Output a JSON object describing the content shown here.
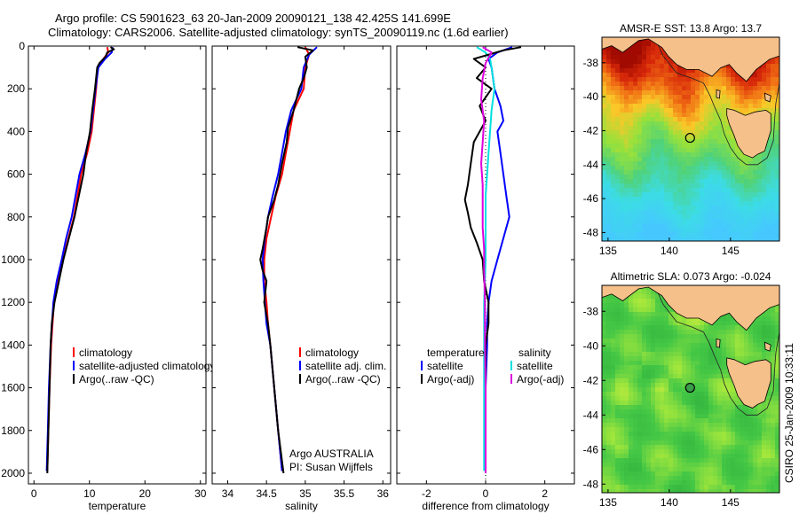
{
  "header": {
    "line1": "Argo profile: CS 5901623_63 20-Jan-2009 20090121_138 42.425S 141.699E",
    "line2": "Climatology: CARS2006. Satellite-adjusted climatology: synTS_20090119.nc (1.6d earlier)"
  },
  "credit": "CSIRO 25-Jan-2009 10:33:11",
  "chart_data": [
    {
      "type": "line",
      "xlabel": "temperature",
      "xlim": [
        -1,
        31
      ],
      "ylim": [
        2050,
        0
      ],
      "xticks": [
        0,
        10,
        20,
        30
      ],
      "yticks": [
        0,
        200,
        400,
        600,
        800,
        1000,
        1200,
        1400,
        1600,
        1800,
        2000
      ],
      "legend": [
        "climatology",
        "satellite-adjusted climatology",
        "Argo(..raw -QC)"
      ],
      "series": [
        {
          "color": "#ff0000",
          "points": [
            [
              13.2,
              5
            ],
            [
              13.4,
              30
            ],
            [
              12.5,
              60
            ],
            [
              11.5,
              100
            ],
            [
              11.2,
              200
            ],
            [
              10.4,
              400
            ],
            [
              9.6,
              500
            ],
            [
              8.5,
              600
            ],
            [
              7.2,
              800
            ],
            [
              6.2,
              900
            ],
            [
              5.2,
              1000
            ],
            [
              4.3,
              1100
            ],
            [
              3.6,
              1200
            ],
            [
              3.1,
              1400
            ],
            [
              2.8,
              1600
            ],
            [
              2.6,
              1800
            ],
            [
              2.4,
              1990
            ]
          ]
        },
        {
          "color": "#0000ff",
          "points": [
            [
              14.2,
              5
            ],
            [
              14.0,
              30
            ],
            [
              12.8,
              60
            ],
            [
              11.6,
              100
            ],
            [
              11.1,
              200
            ],
            [
              10.2,
              400
            ],
            [
              9.3,
              500
            ],
            [
              8.2,
              600
            ],
            [
              6.8,
              800
            ],
            [
              5.8,
              900
            ],
            [
              5.0,
              1000
            ],
            [
              4.1,
              1100
            ],
            [
              3.5,
              1200
            ],
            [
              3.0,
              1400
            ],
            [
              2.7,
              1600
            ],
            [
              2.5,
              1800
            ],
            [
              2.3,
              1990
            ]
          ]
        },
        {
          "color": "#000000",
          "points": [
            [
              13.8,
              5
            ],
            [
              14.4,
              15
            ],
            [
              13.2,
              30
            ],
            [
              12.9,
              50
            ],
            [
              11.8,
              80
            ],
            [
              11.4,
              100
            ],
            [
              11.0,
              200
            ],
            [
              10.5,
              300
            ],
            [
              10.1,
              400
            ],
            [
              9.4,
              500
            ],
            [
              8.9,
              600
            ],
            [
              8.1,
              700
            ],
            [
              7.3,
              800
            ],
            [
              6.3,
              900
            ],
            [
              5.3,
              1000
            ],
            [
              4.5,
              1100
            ],
            [
              3.7,
              1200
            ],
            [
              3.2,
              1300
            ],
            [
              3.0,
              1400
            ],
            [
              2.8,
              1600
            ],
            [
              2.6,
              1800
            ],
            [
              2.4,
              2000
            ]
          ]
        }
      ]
    },
    {
      "type": "line",
      "xlabel": "salinity",
      "xlim": [
        33.8,
        36.1
      ],
      "ylim": [
        2050,
        0
      ],
      "xticks": [
        34,
        34.5,
        35,
        35.5,
        36
      ],
      "xticklabels": [
        "34",
        "34.5",
        "35",
        "35.5",
        "36"
      ],
      "legend": [
        "climatology",
        "satellite adj. clim.",
        "Argo(..raw -QC)"
      ],
      "annotation": [
        "Argo AUSTRALIA",
        "PI: Susan Wijffels"
      ],
      "series": [
        {
          "color": "#ff0000",
          "points": [
            [
              35.0,
              5
            ],
            [
              35.05,
              40
            ],
            [
              35.0,
              100
            ],
            [
              34.98,
              200
            ],
            [
              34.85,
              300
            ],
            [
              34.8,
              400
            ],
            [
              34.75,
              500
            ],
            [
              34.7,
              600
            ],
            [
              34.62,
              700
            ],
            [
              34.56,
              800
            ],
            [
              34.5,
              900
            ],
            [
              34.47,
              1000
            ],
            [
              34.47,
              1100
            ],
            [
              34.5,
              1200
            ],
            [
              34.52,
              1300
            ],
            [
              34.55,
              1400
            ],
            [
              34.6,
              1600
            ],
            [
              34.65,
              1800
            ],
            [
              34.7,
              1990
            ]
          ]
        },
        {
          "color": "#0000ff",
          "points": [
            [
              35.15,
              5
            ],
            [
              35.05,
              40
            ],
            [
              34.98,
              100
            ],
            [
              34.95,
              200
            ],
            [
              34.82,
              300
            ],
            [
              34.75,
              400
            ],
            [
              34.7,
              500
            ],
            [
              34.65,
              600
            ],
            [
              34.58,
              700
            ],
            [
              34.52,
              800
            ],
            [
              34.48,
              900
            ],
            [
              34.45,
              1000
            ],
            [
              34.46,
              1100
            ],
            [
              34.48,
              1200
            ],
            [
              34.5,
              1300
            ],
            [
              34.55,
              1400
            ],
            [
              34.6,
              1600
            ],
            [
              34.65,
              1800
            ],
            [
              34.7,
              1990
            ]
          ]
        },
        {
          "color": "#000000",
          "points": [
            [
              34.9,
              5
            ],
            [
              35.1,
              20
            ],
            [
              35.0,
              50
            ],
            [
              35.02,
              100
            ],
            [
              34.98,
              150
            ],
            [
              34.92,
              200
            ],
            [
              34.85,
              300
            ],
            [
              34.78,
              380
            ],
            [
              34.76,
              450
            ],
            [
              34.7,
              550
            ],
            [
              34.65,
              650
            ],
            [
              34.6,
              720
            ],
            [
              34.52,
              800
            ],
            [
              34.5,
              850
            ],
            [
              34.45,
              950
            ],
            [
              34.42,
              1000
            ],
            [
              34.45,
              1050
            ],
            [
              34.5,
              1100
            ],
            [
              34.47,
              1200
            ],
            [
              34.52,
              1300
            ],
            [
              34.55,
              1400
            ],
            [
              34.6,
              1600
            ],
            [
              34.65,
              1800
            ],
            [
              34.72,
              2000
            ]
          ]
        }
      ]
    },
    {
      "type": "line",
      "xlabel": "difference from climatology",
      "xlim": [
        -3,
        3
      ],
      "ylim": [
        2050,
        0
      ],
      "xticks": [
        -2,
        0,
        2
      ],
      "legend_left": {
        "title": "temperature",
        "items": [
          "satellite",
          "Argo(-adj)"
        ]
      },
      "legend_right": {
        "title": "salinity",
        "items": [
          "satellite",
          "Argo(-adj)"
        ]
      },
      "series": [
        {
          "color": "#0000ff",
          "points": [
            [
              0.9,
              5
            ],
            [
              0.4,
              30
            ],
            [
              0.1,
              60
            ],
            [
              0.2,
              100
            ],
            [
              0.3,
              200
            ],
            [
              0.5,
              280
            ],
            [
              0.6,
              350
            ],
            [
              0.4,
              400
            ],
            [
              0.5,
              500
            ],
            [
              0.6,
              600
            ],
            [
              0.7,
              700
            ],
            [
              0.8,
              800
            ],
            [
              0.6,
              900
            ],
            [
              0.4,
              1000
            ],
            [
              0.2,
              1100
            ],
            [
              0.1,
              1200
            ],
            [
              0.05,
              1300
            ],
            [
              0.05,
              1400
            ],
            [
              0.0,
              1600
            ],
            [
              0.0,
              1800
            ],
            [
              0.0,
              1990
            ]
          ]
        },
        {
          "color": "#00e0e0",
          "points": [
            [
              -0.3,
              5
            ],
            [
              0.0,
              30
            ],
            [
              0.15,
              60
            ],
            [
              0.2,
              100
            ],
            [
              0.3,
              200
            ],
            [
              0.2,
              300
            ],
            [
              0.15,
              400
            ],
            [
              0.1,
              500
            ],
            [
              0.05,
              600
            ],
            [
              0.0,
              700
            ],
            [
              0.0,
              900
            ],
            [
              0.0,
              1000
            ],
            [
              -0.05,
              1200
            ],
            [
              -0.05,
              1400
            ],
            [
              -0.05,
              1600
            ],
            [
              -0.05,
              1800
            ],
            [
              -0.05,
              1990
            ]
          ]
        },
        {
          "color": "#000000",
          "points": [
            [
              1.2,
              5
            ],
            [
              0.6,
              20
            ],
            [
              -0.4,
              60
            ],
            [
              0.0,
              100
            ],
            [
              -0.3,
              150
            ],
            [
              0.2,
              200
            ],
            [
              -0.2,
              280
            ],
            [
              0.0,
              350
            ],
            [
              -0.4,
              450
            ],
            [
              -0.5,
              550
            ],
            [
              -0.6,
              650
            ],
            [
              -0.7,
              720
            ],
            [
              -0.6,
              780
            ],
            [
              -0.5,
              850
            ],
            [
              -0.3,
              920
            ],
            [
              -0.1,
              1000
            ],
            [
              -0.05,
              1100
            ],
            [
              0.1,
              1200
            ],
            [
              0.1,
              1300
            ],
            [
              0.0,
              1400
            ],
            [
              0.0,
              1600
            ],
            [
              0.0,
              1800
            ],
            [
              0.0,
              2000
            ]
          ]
        },
        {
          "color": "#dd00dd",
          "points": [
            [
              -0.1,
              5
            ],
            [
              0.2,
              30
            ],
            [
              0.0,
              80
            ],
            [
              -0.1,
              150
            ],
            [
              -0.15,
              250
            ],
            [
              -0.05,
              350
            ],
            [
              -0.1,
              450
            ],
            [
              -0.15,
              550
            ],
            [
              -0.1,
              650
            ],
            [
              -0.1,
              750
            ],
            [
              -0.1,
              850
            ],
            [
              -0.05,
              950
            ],
            [
              -0.05,
              1050
            ],
            [
              -0.02,
              1200
            ],
            [
              -0.02,
              1400
            ],
            [
              0.0,
              1600
            ],
            [
              0.0,
              1800
            ],
            [
              0.0,
              2000
            ]
          ]
        }
      ]
    },
    {
      "type": "heatmap",
      "title": "AMSR-E SST: 13.8 Argo: 13.7",
      "xlim": [
        134.5,
        149
      ],
      "ylim": [
        -48.5,
        -36.5
      ],
      "xticks": [
        135,
        140,
        145
      ],
      "yticks": [
        -38,
        -40,
        -42,
        -44,
        -46,
        -48
      ],
      "marker": [
        141.699,
        -42.425
      ]
    },
    {
      "type": "heatmap",
      "title": "Altimetric SLA: 0.073 Argo: -0.024",
      "xlim": [
        134.5,
        149
      ],
      "ylim": [
        -48.5,
        -36.5
      ],
      "xticks": [
        135,
        140,
        145
      ],
      "yticks": [
        -38,
        -40,
        -42,
        -44,
        -46,
        -48
      ],
      "marker": [
        141.699,
        -42.425
      ]
    }
  ]
}
